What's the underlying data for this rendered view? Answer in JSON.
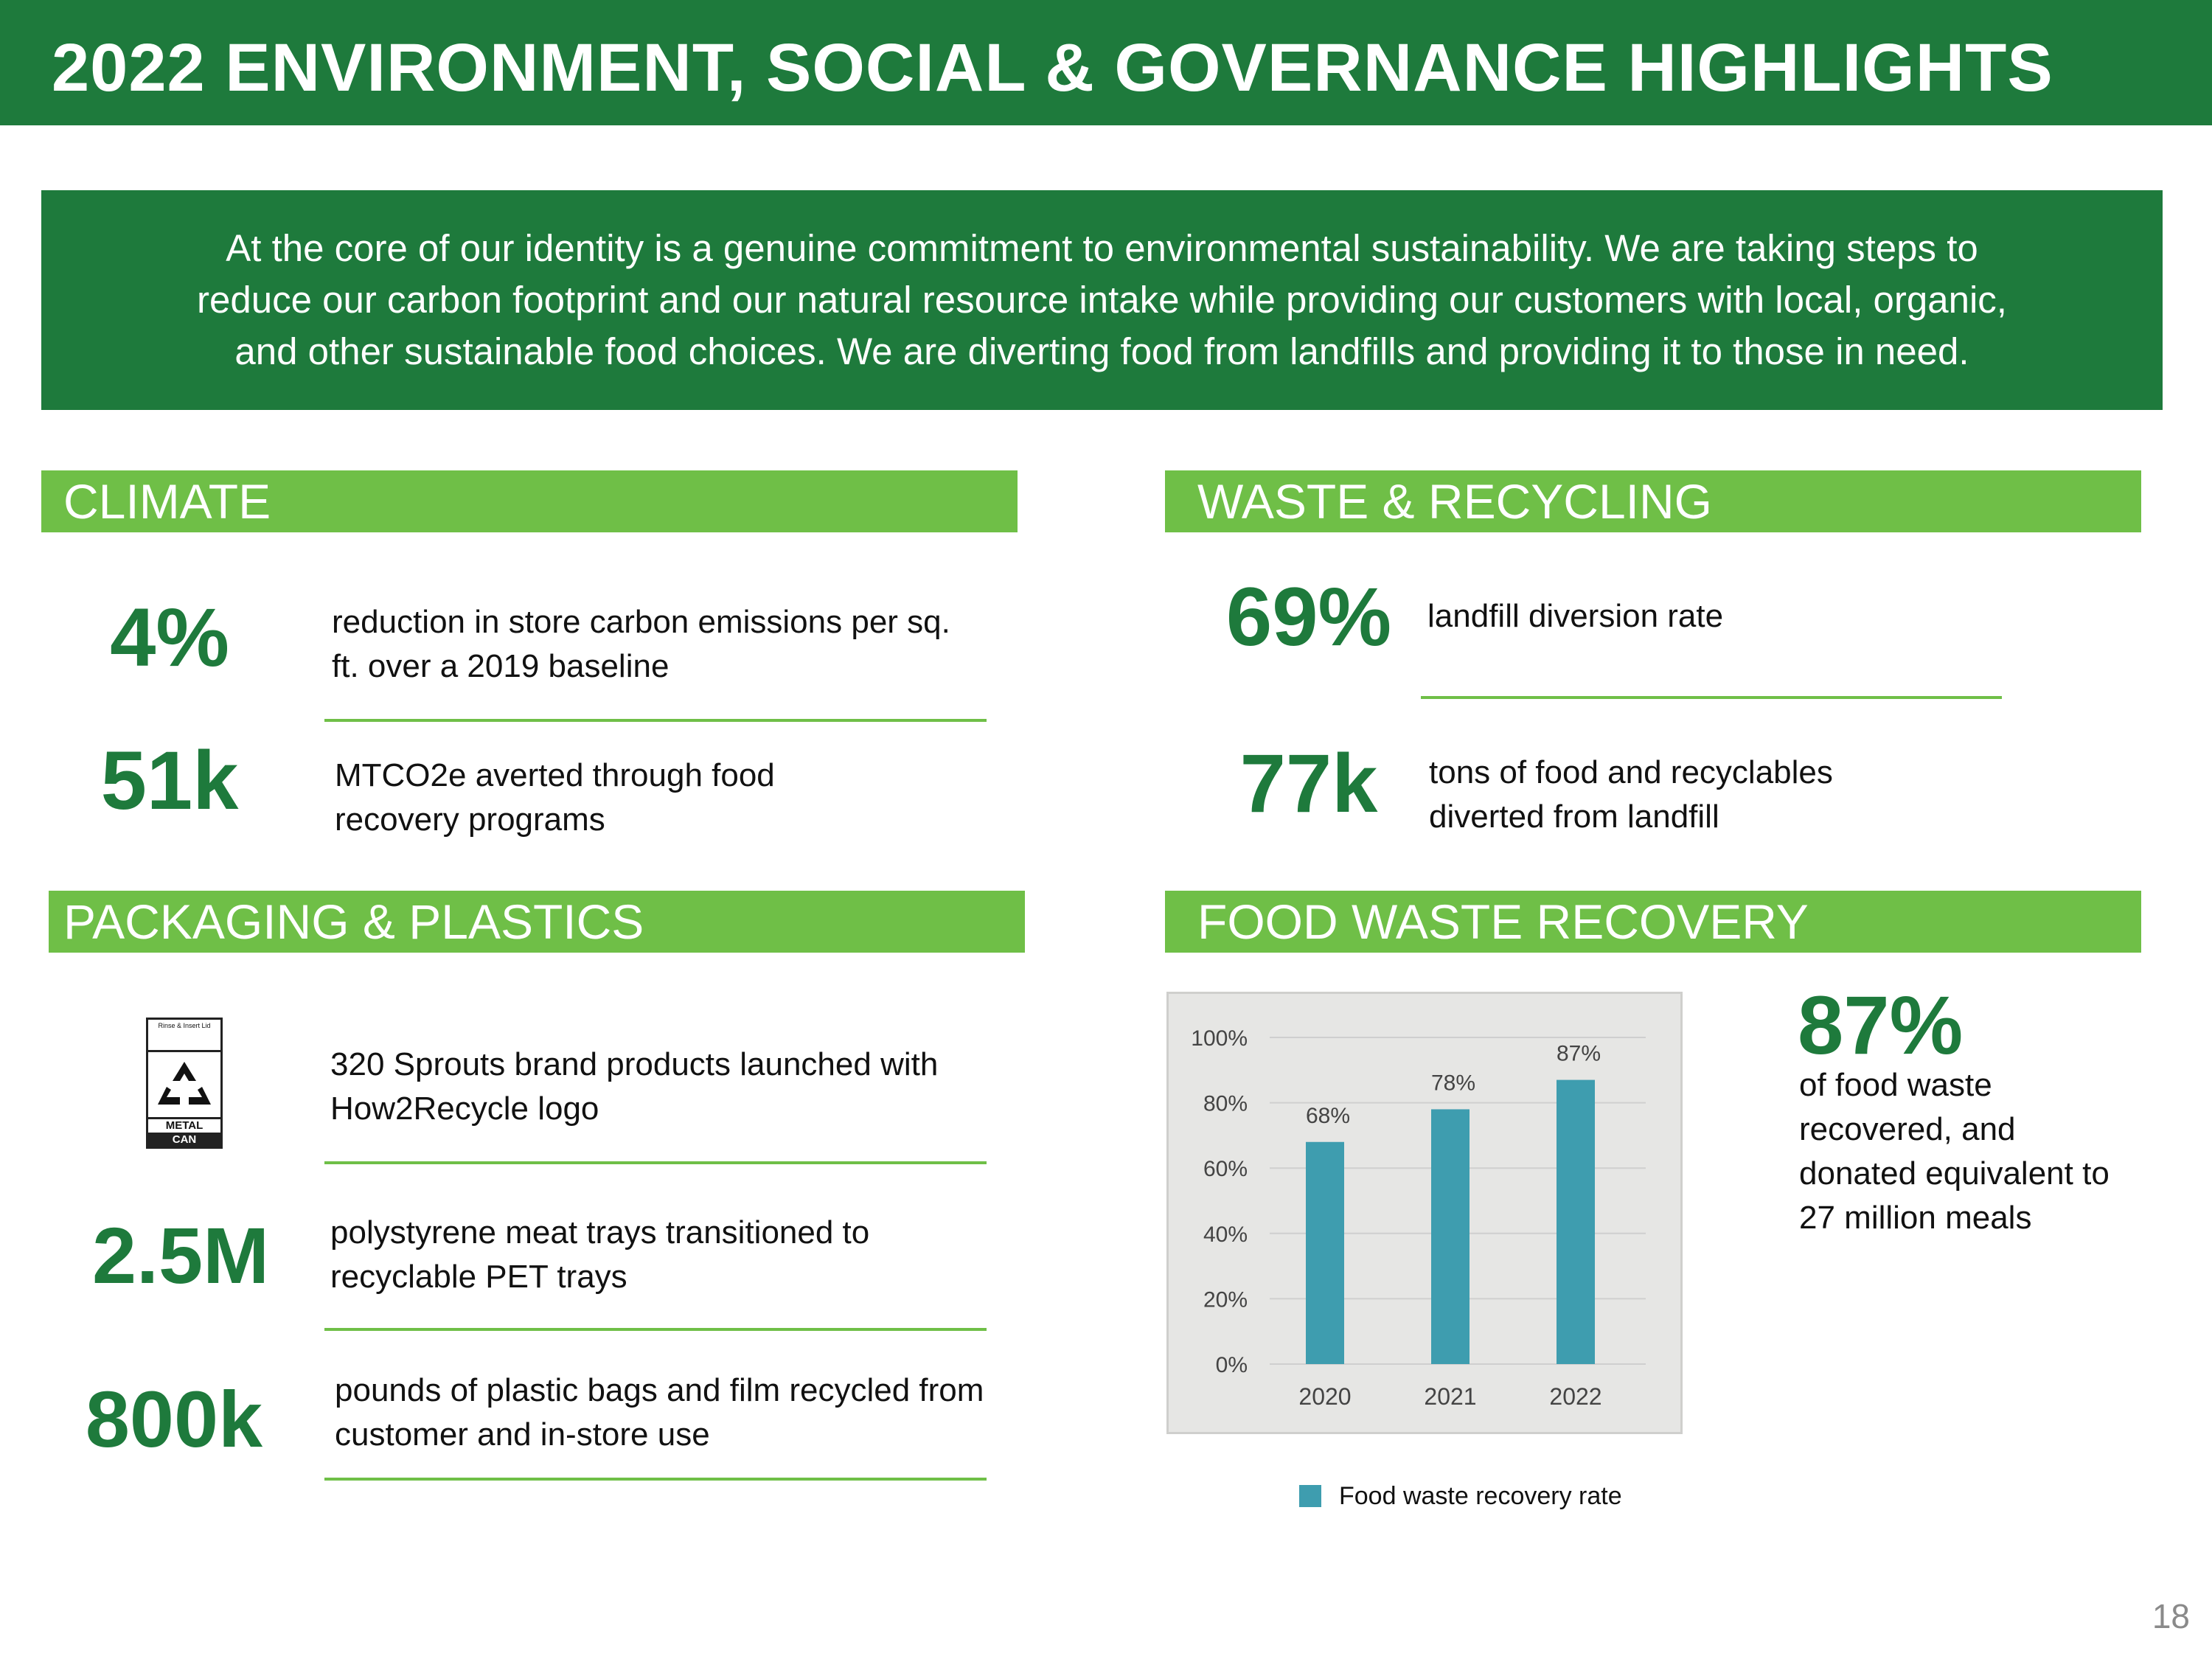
{
  "page_title": "2022 ENVIRONMENT, SOCIAL & GOVERNANCE HIGHLIGHTS",
  "intro": {
    "lines": [
      "At the core of our identity is a genuine commitment to environmental sustainability. We are taking steps to",
      "reduce our carbon footprint and our natural resource intake while providing our customers with local, organic,",
      "and other sustainable food choices. We are diverting food from landfills and providing it to those in need."
    ]
  },
  "climate": {
    "title": "CLIMATE",
    "stat1": {
      "value": "4%",
      "desc_lines": [
        "reduction in store carbon emissions per sq.",
        "ft. over a 2019 baseline"
      ]
    },
    "stat2": {
      "value": "51k",
      "desc_lines": [
        "MTCO2e averted through food",
        "recovery programs"
      ]
    }
  },
  "waste": {
    "title": "WASTE & RECYCLING",
    "stat1": {
      "value": "69%",
      "desc_lines": [
        "landfill diversion rate"
      ]
    },
    "stat2": {
      "value": "77k",
      "desc_lines": [
        "tons of food and recyclables",
        "diverted from landfill"
      ]
    }
  },
  "packaging": {
    "title": "PACKAGING & PLASTICS",
    "logo": {
      "icon": "recycle-icon",
      "top_label": "Rinse & Insert Lid",
      "bottom_label_1": "METAL",
      "bottom_label_2": "CAN"
    },
    "stat1": {
      "desc_lines": [
        "320 Sprouts brand products launched with",
        "How2Recycle logo"
      ]
    },
    "stat2": {
      "value": "2.5M",
      "desc_lines": [
        "polystyrene meat trays transitioned to",
        "recyclable PET trays"
      ]
    },
    "stat3": {
      "value": "800k",
      "desc_lines": [
        "pounds of plastic bags and film recycled from",
        "customer and in-store use"
      ]
    }
  },
  "food_waste": {
    "title": "FOOD WASTE RECOVERY",
    "big_value": "87%",
    "desc_lines": [
      "of food waste",
      "recovered, and",
      "donated equivalent to",
      "27 million meals"
    ]
  },
  "chart_data": {
    "type": "bar",
    "categories": [
      "2020",
      "2021",
      "2022"
    ],
    "values": [
      68,
      78,
      87
    ],
    "data_labels": [
      "68%",
      "78%",
      "87%"
    ],
    "ylim": [
      0,
      100
    ],
    "yticks": [
      "0%",
      "20%",
      "40%",
      "60%",
      "80%",
      "100%"
    ],
    "ytick_values": [
      0,
      20,
      40,
      60,
      80,
      100
    ],
    "legend": [
      "Food waste recovery rate"
    ],
    "legend_position": "bottom",
    "grid": true,
    "bar_color": "#3e9daf"
  },
  "page_number": "18"
}
